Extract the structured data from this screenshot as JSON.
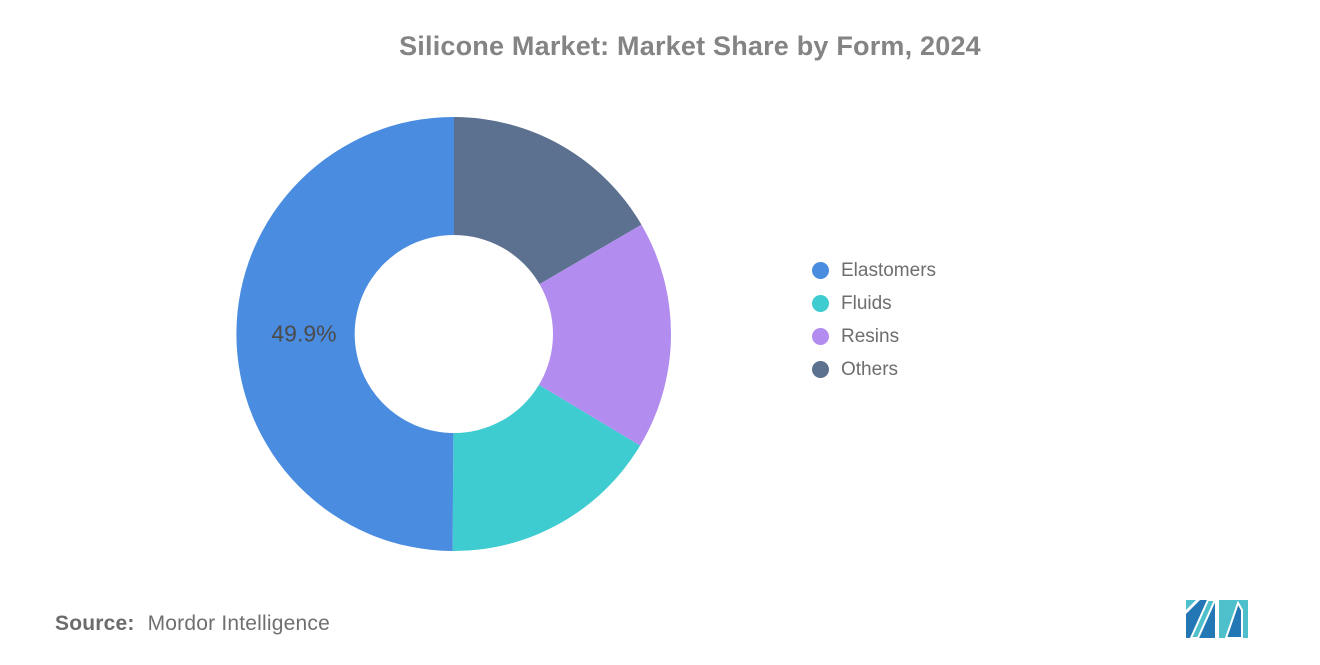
{
  "chart_data": {
    "type": "pie",
    "subtype": "donut",
    "title": "Silicone Market: Market Share by Form, 2024",
    "unit": "%",
    "legend_position": "right",
    "slices": [
      {
        "name": "Elastomers",
        "value": 49.9,
        "color": "#4A8CE0",
        "label": "49.9%"
      },
      {
        "name": "Fluids",
        "value": 16.5,
        "color": "#3FCCD1"
      },
      {
        "name": "Resins",
        "value": 17.0,
        "color": "#B28CEF"
      },
      {
        "name": "Others",
        "value": 16.6,
        "color": "#5C7090"
      }
    ],
    "label_color": "#4b4b4b"
  },
  "source": {
    "label": "Source:",
    "text": "Mordor Intelligence"
  },
  "logo": {
    "name": "mordor-intelligence-logo",
    "teal": "#4DC0CB",
    "blue": "#2277B4"
  }
}
